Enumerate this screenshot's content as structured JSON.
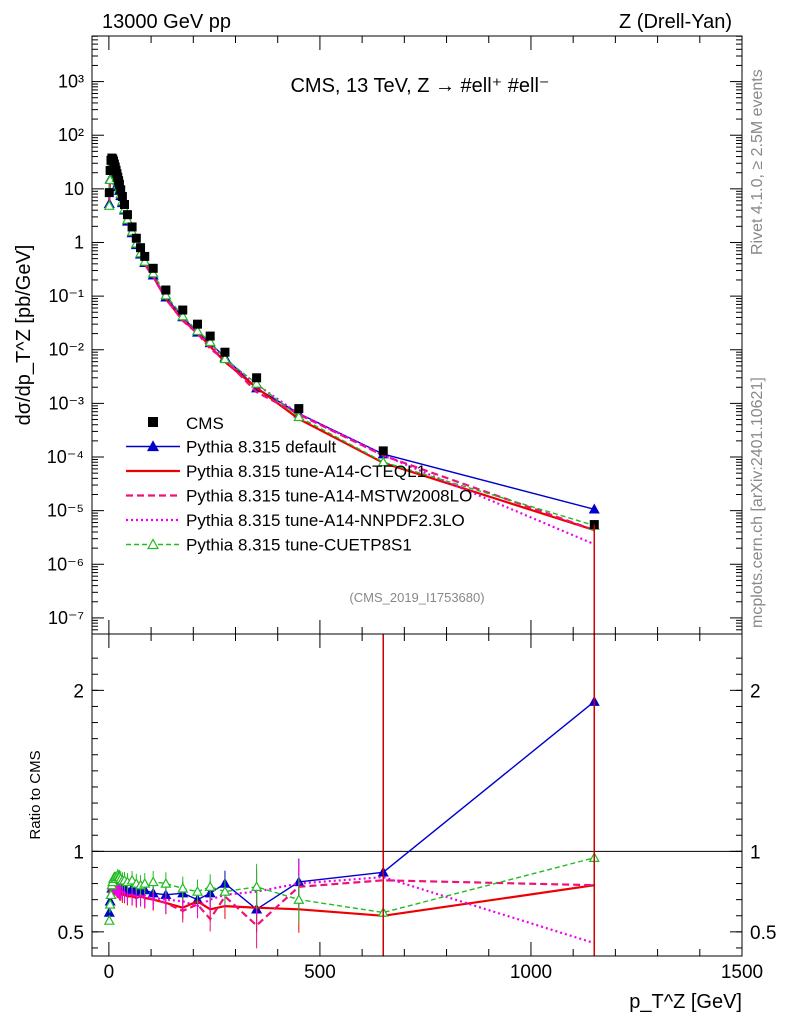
{
  "header": {
    "left": "13000 GeV pp",
    "right": "Z (Drell-Yan)"
  },
  "side": {
    "rivet": "Rivet 4.1.0, ≥ 2.5M events",
    "mcplots": "mcplots.cern.ch [arXiv:2401.10621]"
  },
  "chart_data": {
    "type": "line",
    "title": "CMS, 13 TeV, Z →  #ell⁺ #ell⁻",
    "analysis_tag": "(CMS_2019_I1753680)",
    "xlabel": "p_T^Z [GeV]",
    "ylabel_main": "dσ/dp_T^Z [pb/GeV]",
    "ylabel_ratio": "Ratio to CMS",
    "xlim": [
      -40,
      1500
    ],
    "ylim_main_log10": [
      -7.3,
      3.85
    ],
    "ylim_ratio": [
      0.35,
      2.35
    ],
    "x_ticks": [
      0,
      500,
      1000,
      1500
    ],
    "y_ticks_main": [
      {
        "v": 1000,
        "label": "10³"
      },
      {
        "v": 100,
        "label": "10²"
      },
      {
        "v": 10,
        "label": "10"
      },
      {
        "v": 1,
        "label": "1"
      },
      {
        "v": 0.1,
        "label": "10⁻¹"
      },
      {
        "v": 0.01,
        "label": "10⁻²"
      },
      {
        "v": 0.001,
        "label": "10⁻³"
      },
      {
        "v": 0.0001,
        "label": "10⁻⁴"
      },
      {
        "v": 1e-05,
        "label": "10⁻⁵"
      },
      {
        "v": 1e-06,
        "label": "10⁻⁶"
      },
      {
        "v": 1e-07,
        "label": "10⁻⁷"
      }
    ],
    "y_ticks_ratio": [
      {
        "v": 0.5,
        "label": "0.5"
      },
      {
        "v": 1,
        "label": "1"
      },
      {
        "v": 2,
        "label": "2"
      }
    ],
    "x": [
      1,
      3,
      5,
      7,
      9,
      11,
      13,
      15,
      17,
      19,
      21,
      23,
      25,
      28,
      32,
      37,
      44,
      55,
      65,
      75,
      85,
      105,
      135,
      175,
      210,
      240,
      275,
      350,
      450,
      650,
      1150
    ],
    "data": {
      "name": "CMS",
      "values": [
        8.5,
        22,
        34,
        37.5,
        36,
        33,
        29,
        25.5,
        22.2,
        19.2,
        16.5,
        14.2,
        12.2,
        9.6,
        7.2,
        5.1,
        3.3,
        1.95,
        1.2,
        0.8,
        0.55,
        0.33,
        0.13,
        0.055,
        0.03,
        0.018,
        0.009,
        0.003,
        0.0008,
        0.00013,
        5.5e-06
      ]
    },
    "series": [
      {
        "name": "Pythia 8.315 default",
        "color": "#0000cc",
        "dash": "",
        "marker": "triangle-filled",
        "ratio": [
          0.62,
          0.69,
          0.73,
          0.77,
          0.79,
          0.79,
          0.78,
          0.79,
          0.78,
          0.76,
          0.76,
          0.77,
          0.76,
          0.77,
          0.76,
          0.78,
          0.75,
          0.77,
          0.75,
          0.75,
          0.76,
          0.74,
          0.73,
          0.74,
          0.7,
          0.74,
          0.8,
          0.64,
          0.81,
          0.87,
          1.93
        ]
      },
      {
        "name": "Pythia 8.315 tune-A14-CTEQL1",
        "color": "#ee0000",
        "dash": "",
        "marker": "none",
        "ratio": [
          0.72,
          0.75,
          0.76,
          0.76,
          0.76,
          0.76,
          0.76,
          0.76,
          0.76,
          0.75,
          0.75,
          0.75,
          0.74,
          0.74,
          0.73,
          0.73,
          0.72,
          0.72,
          0.71,
          0.72,
          0.71,
          0.7,
          0.68,
          0.65,
          0.69,
          0.64,
          0.66,
          0.65,
          0.64,
          0.6,
          0.79
        ]
      },
      {
        "name": "Pythia 8.315 tune-A14-MSTW2008LO",
        "color": "#ee1177",
        "dash": "7,4",
        "marker": "none",
        "ratio": [
          0.74,
          0.78,
          0.79,
          0.78,
          0.78,
          0.77,
          0.77,
          0.76,
          0.76,
          0.76,
          0.75,
          0.76,
          0.75,
          0.75,
          0.75,
          0.74,
          0.73,
          0.73,
          0.72,
          0.73,
          0.71,
          0.7,
          0.68,
          0.63,
          0.67,
          0.58,
          0.72,
          0.54,
          0.78,
          0.82,
          0.79
        ]
      },
      {
        "name": "Pythia 8.315 tune-A14-NNPDF2.3LO",
        "color": "#ee00ee",
        "dash": "2,3",
        "marker": "none",
        "ratio": [
          0.8,
          0.79,
          0.78,
          0.78,
          0.77,
          0.77,
          0.77,
          0.76,
          0.76,
          0.76,
          0.76,
          0.75,
          0.75,
          0.75,
          0.75,
          0.74,
          0.73,
          0.73,
          0.72,
          0.72,
          0.72,
          0.71,
          0.7,
          0.69,
          0.66,
          0.7,
          0.73,
          0.75,
          0.8,
          0.84,
          0.43
        ]
      },
      {
        "name": "Pythia 8.315 tune-CUETP8S1",
        "color": "#22bb22",
        "dash": "5,3",
        "marker": "triangle-open",
        "ratio": [
          0.57,
          0.67,
          0.73,
          0.79,
          0.81,
          0.83,
          0.84,
          0.84,
          0.83,
          0.84,
          0.85,
          0.84,
          0.84,
          0.83,
          0.82,
          0.82,
          0.81,
          0.82,
          0.8,
          0.79,
          0.8,
          0.81,
          0.8,
          0.77,
          0.75,
          0.78,
          0.75,
          0.78,
          0.7,
          0.62,
          0.96
        ]
      }
    ],
    "legend": {
      "position": "bottom-left",
      "data_label": "CMS"
    }
  }
}
